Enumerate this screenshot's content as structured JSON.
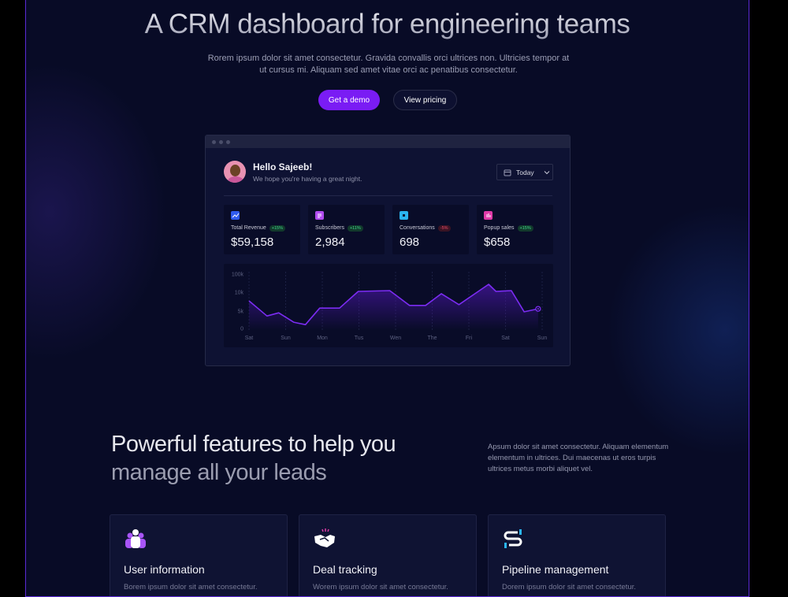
{
  "hero": {
    "title": "A CRM dashboard for engineering teams",
    "subtitle": "Rorem ipsum dolor sit amet consectetur. Gravida convallis orci ultrices non. Ultricies tempor at ut cursus mi. Aliquam sed amet vitae orci ac penatibus consectetur.",
    "primary_button": "Get a demo",
    "secondary_button": "View pricing",
    "accent": "#7a1cf4"
  },
  "dashboard": {
    "greeting": "Hello Sajeeb!",
    "message": "We hope you're having a great night.",
    "date_filter": "Today",
    "stats": [
      {
        "label": "Total Revenue",
        "change": "+15%",
        "trend": "up",
        "value": "$59,158",
        "icon": "trend-chart-icon",
        "color": "#2f5bf0"
      },
      {
        "label": "Subscribers",
        "change": "+11%",
        "trend": "up",
        "value": "2,984",
        "icon": "document-icon",
        "color": "#b14cf0"
      },
      {
        "label": "Conversations",
        "change": "-5%",
        "trend": "down",
        "value": "698",
        "icon": "shield-icon",
        "color": "#2ab4f0"
      },
      {
        "label": "Popup sales",
        "change": "+15%",
        "trend": "up",
        "value": "$658",
        "icon": "bar-chart-icon",
        "color": "#e03aa8"
      }
    ]
  },
  "chart_data": {
    "type": "area",
    "y_tick_labels": [
      "100k",
      "10k",
      "5k",
      "0"
    ],
    "categories": [
      "Sat",
      "Sun",
      "Mon",
      "Tus",
      "Wen",
      "The",
      "Fri",
      "Sat",
      "Sun"
    ],
    "grid": "vertical dashed",
    "line_color": "#7b2cf2",
    "points": [
      [
        0,
        7.7
      ],
      [
        0.49,
        3.6
      ],
      [
        0.81,
        4.5
      ],
      [
        1.22,
        1.8
      ],
      [
        1.54,
        1.1
      ],
      [
        1.93,
        5.8
      ],
      [
        2.47,
        5.8
      ],
      [
        2.98,
        13.9
      ],
      [
        3.84,
        17.8
      ],
      [
        4.38,
        6.5
      ],
      [
        4.82,
        6.5
      ],
      [
        5.25,
        9.6
      ],
      [
        5.73,
        6.7
      ],
      [
        6.54,
        49
      ],
      [
        6.74,
        13.9
      ],
      [
        7.16,
        17.8
      ],
      [
        7.51,
        4.8
      ],
      [
        7.89,
        5.6
      ]
    ],
    "y_unit": "k"
  },
  "features": {
    "heading_line1": "Powerful features to help you",
    "heading_line2": "manage all your leads",
    "description": "Apsum dolor sit amet consectetur. Aliquam elementum elementum in ultrices. Dui maecenas ut eros turpis ultrices metus morbi aliquet vel.",
    "cards": [
      {
        "title": "User information",
        "desc": "Borem ipsum dolor sit amet consectetur.",
        "icon": "users-icon"
      },
      {
        "title": "Deal tracking",
        "desc": "Worem ipsum dolor sit amet consectetur.",
        "icon": "handshake-icon"
      },
      {
        "title": "Pipeline management",
        "desc": "Dorem ipsum dolor sit amet consectetur.",
        "icon": "pipeline-icon"
      }
    ]
  }
}
